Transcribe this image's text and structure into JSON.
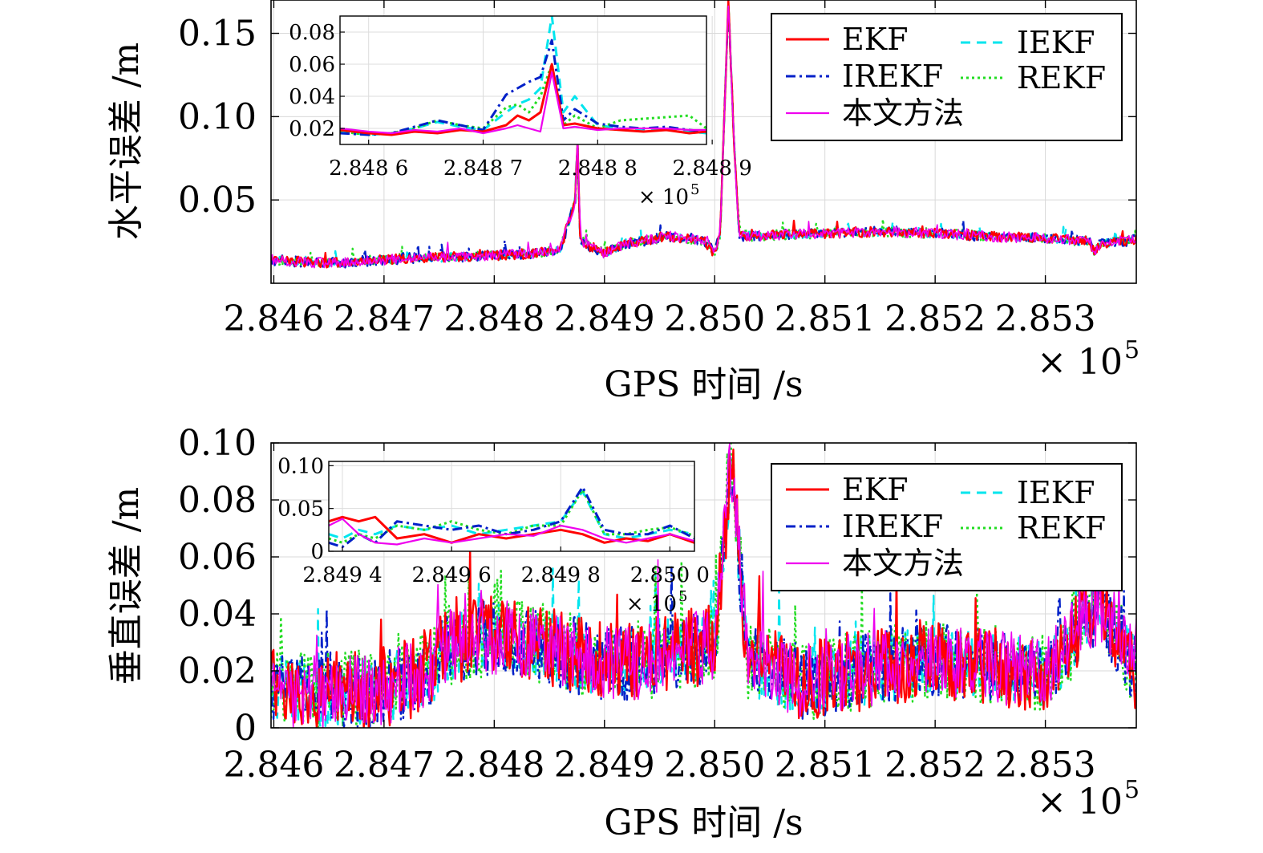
{
  "colors": {
    "EKF": "#ff0000",
    "IEKF": "#00e5ee",
    "IREKF": "#0020c8",
    "REKF": "#22dd22",
    "本文方法": "#ee00ee"
  },
  "chart_data": [
    {
      "type": "line",
      "xlabel": "GPS 时间 /s",
      "ylabel": "水平误差 /m",
      "x_multiplier": "× 10",
      "x_multiplier_exp": "5",
      "xlim": [
        284.5975,
        285.3825
      ],
      "ylim": [
        0.0,
        0.17
      ],
      "xticks": [
        284.6,
        284.7,
        284.8,
        284.9,
        285.0,
        285.1,
        285.2,
        285.3
      ],
      "xtick_labels": [
        "2.846",
        "2.847",
        "2.848",
        "2.849",
        "2.850",
        "2.851",
        "2.852",
        "2.853"
      ],
      "yticks": [
        0.05,
        0.1,
        0.15
      ],
      "ytick_labels": [
        "0.05",
        "0.10",
        "0.15"
      ],
      "grid": true,
      "legend": {
        "position": "top-right",
        "entries": [
          "EKF",
          "IEKF",
          "IREKF",
          "REKF",
          "本文方法"
        ]
      },
      "series_keypoints": [
        [
          284.5975,
          0.014
        ],
        [
          284.65,
          0.012
        ],
        [
          284.72,
          0.015
        ],
        [
          284.78,
          0.016
        ],
        [
          284.84,
          0.018
        ],
        [
          284.86,
          0.02
        ],
        [
          284.8735,
          0.05
        ],
        [
          284.8755,
          0.085
        ],
        [
          284.878,
          0.025
        ],
        [
          284.9,
          0.018
        ],
        [
          284.92,
          0.024
        ],
        [
          284.96,
          0.028
        ],
        [
          284.99,
          0.026
        ],
        [
          285.0,
          0.018
        ],
        [
          285.005,
          0.03
        ],
        [
          285.0125,
          0.17
        ],
        [
          285.0165,
          0.1
        ],
        [
          285.022,
          0.028
        ],
        [
          285.06,
          0.029
        ],
        [
          285.1,
          0.03
        ],
        [
          285.15,
          0.031
        ],
        [
          285.2,
          0.03
        ],
        [
          285.25,
          0.028
        ],
        [
          285.3,
          0.027
        ],
        [
          285.34,
          0.025
        ],
        [
          285.345,
          0.018
        ],
        [
          285.35,
          0.024
        ],
        [
          285.3825,
          0.026
        ]
      ],
      "inset": {
        "xlim": [
          284.8575,
          284.8895
        ],
        "ylim": [
          0.01,
          0.09
        ],
        "xticks": [
          284.86,
          284.87,
          284.88,
          284.89
        ],
        "xtick_labels": [
          "2.848 6",
          "2.848 7",
          "2.848 8",
          "2.848 9"
        ],
        "yticks": [
          0.02,
          0.04,
          0.06,
          0.08
        ],
        "ytick_labels": [
          "0.02",
          "0.04",
          "0.06",
          "0.08"
        ],
        "x_multiplier": "× 10",
        "x_multiplier_exp": "5",
        "series": [
          {
            "name": "EKF",
            "x": [
              284.8575,
              284.86,
              284.862,
              284.864,
              284.866,
              284.868,
              284.87,
              284.872,
              284.873,
              284.874,
              284.875,
              284.876,
              284.877,
              284.878,
              284.88,
              284.882,
              284.884,
              284.886,
              284.888,
              284.8895
            ],
            "y": [
              0.019,
              0.017,
              0.016,
              0.018,
              0.017,
              0.019,
              0.018,
              0.022,
              0.028,
              0.025,
              0.03,
              0.06,
              0.022,
              0.023,
              0.02,
              0.019,
              0.018,
              0.019,
              0.017,
              0.018
            ]
          },
          {
            "name": "IEKF",
            "x": [
              284.8575,
              284.86,
              284.862,
              284.864,
              284.866,
              284.868,
              284.87,
              284.872,
              284.873,
              284.874,
              284.875,
              284.876,
              284.877,
              284.878,
              284.88,
              284.882,
              284.884,
              284.886,
              284.888,
              284.8895
            ],
            "y": [
              0.018,
              0.016,
              0.017,
              0.02,
              0.024,
              0.021,
              0.019,
              0.03,
              0.035,
              0.038,
              0.045,
              0.09,
              0.03,
              0.04,
              0.022,
              0.02,
              0.019,
              0.02,
              0.018,
              0.017
            ]
          },
          {
            "name": "IREKF",
            "x": [
              284.8575,
              284.86,
              284.862,
              284.864,
              284.866,
              284.868,
              284.87,
              284.872,
              284.873,
              284.874,
              284.875,
              284.876,
              284.877,
              284.878,
              284.88,
              284.882,
              284.884,
              284.886,
              284.888,
              284.8895
            ],
            "y": [
              0.017,
              0.016,
              0.017,
              0.021,
              0.025,
              0.022,
              0.019,
              0.041,
              0.045,
              0.049,
              0.052,
              0.075,
              0.025,
              0.032,
              0.023,
              0.021,
              0.02,
              0.021,
              0.019,
              0.018
            ]
          },
          {
            "name": "REKF",
            "x": [
              284.8575,
              284.86,
              284.862,
              284.864,
              284.866,
              284.868,
              284.87,
              284.872,
              284.873,
              284.874,
              284.875,
              284.876,
              284.877,
              284.878,
              284.88,
              284.882,
              284.884,
              284.886,
              284.888,
              284.8895
            ],
            "y": [
              0.018,
              0.016,
              0.017,
              0.02,
              0.025,
              0.022,
              0.02,
              0.033,
              0.035,
              0.03,
              0.04,
              0.06,
              0.022,
              0.028,
              0.02,
              0.025,
              0.026,
              0.027,
              0.028,
              0.02
            ]
          },
          {
            "name": "本文方法",
            "x": [
              284.8575,
              284.86,
              284.862,
              284.864,
              284.866,
              284.868,
              284.87,
              284.872,
              284.873,
              284.874,
              284.875,
              284.876,
              284.877,
              284.878,
              284.88,
              284.882,
              284.884,
              284.886,
              284.888,
              284.8895
            ],
            "y": [
              0.02,
              0.018,
              0.017,
              0.019,
              0.018,
              0.02,
              0.017,
              0.02,
              0.022,
              0.02,
              0.018,
              0.055,
              0.02,
              0.021,
              0.019,
              0.02,
              0.02,
              0.02,
              0.019,
              0.019
            ]
          }
        ]
      }
    },
    {
      "type": "line",
      "xlabel": "GPS 时间 /s",
      "ylabel": "垂直误差 /m",
      "x_multiplier": "× 10",
      "x_multiplier_exp": "5",
      "xlim": [
        284.5975,
        285.3825
      ],
      "ylim": [
        0.0,
        0.1
      ],
      "xticks": [
        284.6,
        284.7,
        284.8,
        284.9,
        285.0,
        285.1,
        285.2,
        285.3
      ],
      "xtick_labels": [
        "2.846",
        "2.847",
        "2.848",
        "2.849",
        "2.850",
        "2.851",
        "2.852",
        "2.853"
      ],
      "yticks": [
        0,
        0.02,
        0.04,
        0.06,
        0.08,
        0.1
      ],
      "ytick_labels": [
        "0",
        "0.02",
        "0.04",
        "0.06",
        "0.08",
        "0.10"
      ],
      "grid": true,
      "legend": {
        "position": "top-right",
        "entries": [
          "EKF",
          "IEKF",
          "IREKF",
          "REKF",
          "本文方法"
        ]
      },
      "series_keypoints": [
        [
          284.5975,
          0.01
        ],
        [
          284.65,
          0.008
        ],
        [
          284.7,
          0.01
        ],
        [
          284.74,
          0.015
        ],
        [
          284.76,
          0.025
        ],
        [
          284.8,
          0.028
        ],
        [
          284.84,
          0.026
        ],
        [
          284.88,
          0.02
        ],
        [
          284.92,
          0.018
        ],
        [
          284.96,
          0.022
        ],
        [
          285.0,
          0.025
        ],
        [
          285.015,
          0.09
        ],
        [
          285.03,
          0.02
        ],
        [
          285.08,
          0.012
        ],
        [
          285.12,
          0.015
        ],
        [
          285.16,
          0.018
        ],
        [
          285.2,
          0.02
        ],
        [
          285.25,
          0.018
        ],
        [
          285.3,
          0.015
        ],
        [
          285.35,
          0.04
        ],
        [
          285.3825,
          0.015
        ]
      ],
      "inset": {
        "xlim": [
          284.9375,
          285.0045
        ],
        "ylim": [
          0.0,
          0.105
        ],
        "xticks": [
          284.94,
          284.96,
          284.98,
          285.0
        ],
        "xtick_labels": [
          "2.849 4",
          "2.849 6",
          "2.849 8",
          "2.850 0"
        ],
        "yticks": [
          0,
          0.05,
          0.1
        ],
        "ytick_labels": [
          "0",
          "0.05",
          "0.10"
        ],
        "x_multiplier": "× 10",
        "x_multiplier_exp": "5",
        "series": [
          {
            "name": "EKF",
            "x": [
              284.9375,
              284.94,
              284.943,
              284.946,
              284.95,
              284.955,
              284.96,
              284.965,
              284.97,
              284.975,
              284.98,
              284.984,
              284.988,
              284.992,
              284.996,
              285.0,
              285.0045
            ],
            "y": [
              0.035,
              0.04,
              0.035,
              0.04,
              0.015,
              0.02,
              0.01,
              0.02,
              0.015,
              0.02,
              0.025,
              0.02,
              0.01,
              0.015,
              0.012,
              0.02,
              0.01
            ]
          },
          {
            "name": "IEKF",
            "x": [
              284.9375,
              284.94,
              284.943,
              284.946,
              284.95,
              284.955,
              284.96,
              284.965,
              284.97,
              284.975,
              284.98,
              284.984,
              284.988,
              284.992,
              284.996,
              285.0,
              285.0045
            ],
            "y": [
              0.02,
              0.015,
              0.025,
              0.02,
              0.03,
              0.025,
              0.03,
              0.02,
              0.025,
              0.03,
              0.035,
              0.07,
              0.02,
              0.015,
              0.02,
              0.025,
              0.02
            ]
          },
          {
            "name": "IREKF",
            "x": [
              284.9375,
              284.94,
              284.943,
              284.946,
              284.95,
              284.955,
              284.96,
              284.965,
              284.97,
              284.975,
              284.98,
              284.984,
              284.988,
              284.992,
              284.996,
              285.0,
              285.0045
            ],
            "y": [
              0.01,
              0.005,
              0.02,
              0.01,
              0.035,
              0.03,
              0.025,
              0.03,
              0.02,
              0.025,
              0.035,
              0.075,
              0.025,
              0.02,
              0.02,
              0.03,
              0.015
            ]
          },
          {
            "name": "REKF",
            "x": [
              284.9375,
              284.94,
              284.943,
              284.946,
              284.95,
              284.955,
              284.96,
              284.965,
              284.97,
              284.975,
              284.98,
              284.984,
              284.988,
              284.992,
              284.996,
              285.0,
              285.0045
            ],
            "y": [
              0.015,
              0.01,
              0.02,
              0.015,
              0.03,
              0.025,
              0.035,
              0.025,
              0.02,
              0.03,
              0.03,
              0.072,
              0.02,
              0.02,
              0.025,
              0.028,
              0.018
            ]
          },
          {
            "name": "本文方法",
            "x": [
              284.9375,
              284.94,
              284.943,
              284.946,
              284.95,
              284.955,
              284.96,
              284.965,
              284.97,
              284.975,
              284.98,
              284.984,
              284.988,
              284.992,
              284.996,
              285.0,
              285.0045
            ],
            "y": [
              0.03,
              0.038,
              0.02,
              0.01,
              0.008,
              0.015,
              0.01,
              0.015,
              0.02,
              0.018,
              0.03,
              0.025,
              0.015,
              0.01,
              0.015,
              0.02,
              0.012
            ]
          }
        ]
      }
    }
  ]
}
